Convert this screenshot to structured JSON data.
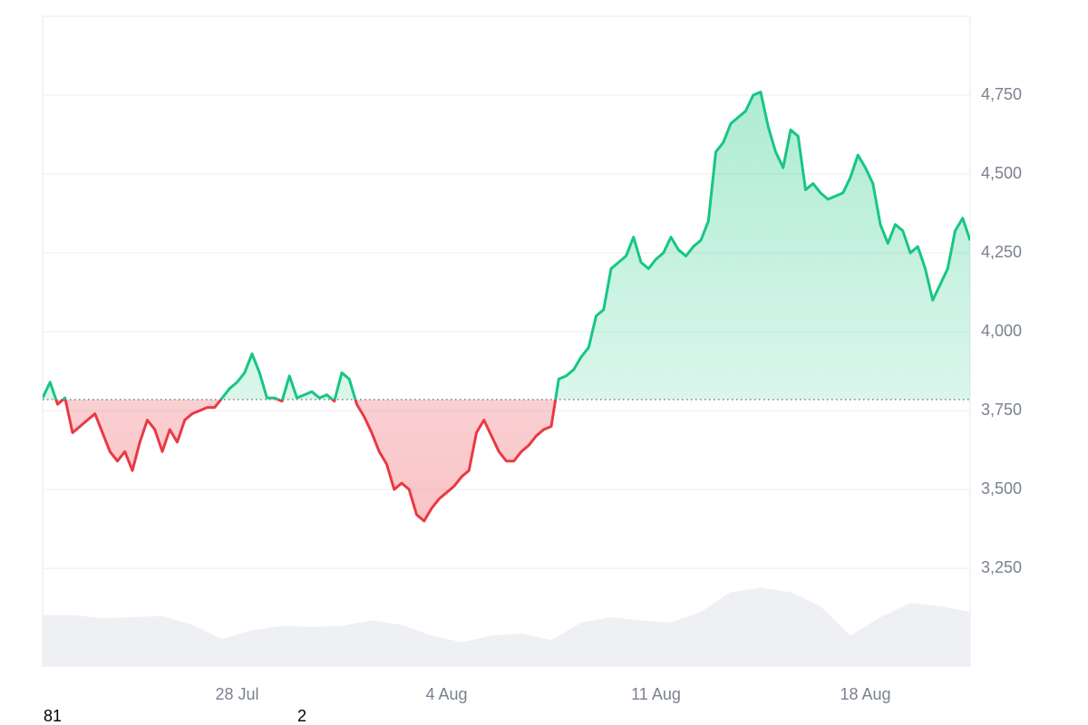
{
  "chart_data": {
    "type": "line",
    "categories": [
      null,
      null,
      null,
      null,
      null,
      null,
      null,
      null,
      null,
      null,
      null,
      null,
      null,
      null,
      null,
      null,
      null,
      null,
      null,
      null,
      null,
      null,
      null,
      null,
      null,
      null,
      "28 Jul",
      null,
      null,
      null,
      null,
      null,
      null,
      null,
      null,
      null,
      null,
      null,
      null,
      null,
      null,
      null,
      null,
      null,
      null,
      null,
      null,
      null,
      null,
      null,
      null,
      null,
      null,
      null,
      "4 Aug",
      null,
      null,
      null,
      null,
      null,
      null,
      null,
      null,
      null,
      null,
      null,
      null,
      null,
      null,
      null,
      null,
      null,
      null,
      null,
      null,
      null,
      null,
      null,
      null,
      null,
      null,
      null,
      "11 Aug",
      null,
      null,
      null,
      null,
      null,
      null,
      null,
      null,
      null,
      null,
      null,
      null,
      null,
      null,
      null,
      null,
      null,
      null,
      null,
      null,
      null,
      null,
      null,
      null,
      null,
      null,
      null,
      "18 Aug",
      null,
      null,
      null,
      null,
      null,
      null,
      null,
      null,
      null,
      null,
      null,
      null,
      null,
      null
    ],
    "values": [
      3790,
      3840,
      3770,
      3790,
      3680,
      3700,
      3720,
      3740,
      3680,
      3620,
      3590,
      3620,
      3560,
      3650,
      3720,
      3690,
      3620,
      3690,
      3650,
      3720,
      3740,
      3750,
      3760,
      3760,
      3790,
      3820,
      3840,
      3870,
      3930,
      3870,
      3790,
      3790,
      3780,
      3860,
      3790,
      3800,
      3810,
      3790,
      3800,
      3780,
      3870,
      3850,
      3770,
      3730,
      3680,
      3620,
      3580,
      3500,
      3520,
      3500,
      3420,
      3400,
      3440,
      3470,
      3490,
      3510,
      3540,
      3560,
      3680,
      3720,
      3670,
      3620,
      3590,
      3590,
      3620,
      3640,
      3670,
      3690,
      3700,
      3850,
      3860,
      3880,
      3920,
      3950,
      4050,
      4070,
      4200,
      4220,
      4240,
      4300,
      4220,
      4200,
      4230,
      4250,
      4300,
      4260,
      4240,
      4270,
      4290,
      4350,
      4570,
      4600,
      4660,
      4680,
      4700,
      4750,
      4760,
      4650,
      4570,
      4520,
      4640,
      4620,
      4450,
      4470,
      4440,
      4420,
      4430,
      4440,
      4490,
      4560,
      4520,
      4470,
      4340,
      4280,
      4340,
      4320,
      4250,
      4270,
      4200,
      4100,
      4150,
      4200,
      4320,
      4360,
      4290
    ],
    "baseline": 3785,
    "colors": {
      "above": "#16c784",
      "below": "#ea3943",
      "volume": "#eef0f4"
    },
    "ylim": [
      2940,
      5000
    ],
    "yticks": [
      {
        "value": 3250,
        "label": "3,250"
      },
      {
        "value": 3500,
        "label": "3,500"
      },
      {
        "value": 3750,
        "label": "3,750"
      },
      {
        "value": 4000,
        "label": "4,000"
      },
      {
        "value": 4250,
        "label": "4,250"
      },
      {
        "value": 4500,
        "label": "4,500"
      },
      {
        "value": 4750,
        "label": "4,750"
      }
    ],
    "grid": true,
    "volume": {
      "values": [
        47,
        47,
        44,
        45,
        46,
        38,
        25,
        33,
        37,
        36,
        37,
        42,
        38,
        28,
        22,
        28,
        30,
        24,
        40,
        45,
        42,
        40,
        50,
        68,
        72,
        68,
        55,
        28,
        45,
        58,
        55,
        50
      ],
      "y2lim": [
        0,
        100
      ]
    },
    "footer_texts": [
      "81",
      "2"
    ]
  }
}
